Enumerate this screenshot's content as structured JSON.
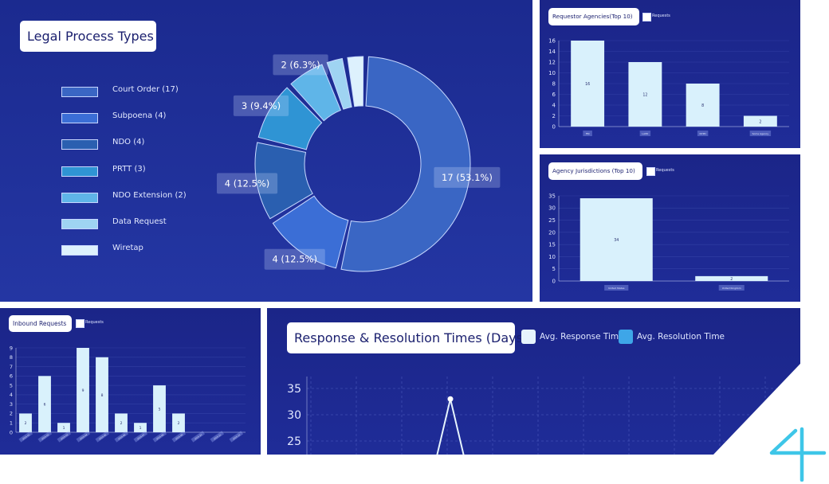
{
  "colors": {
    "accent": "#3ec6e8",
    "bar": "#d9f1fc"
  },
  "chart_data": [
    {
      "type": "pie",
      "title": "Legal Process Types",
      "categories": [
        "Court Order (17)",
        "Subpoena (4)",
        "NDO (4)",
        "PRTT (3)",
        "NDO Extension (2)",
        "Data Request",
        "Wiretap"
      ],
      "values": [
        17,
        4,
        4,
        3,
        2,
        1,
        1
      ],
      "slice_labels": [
        "17 (53.1%)",
        "4 (12.5%)",
        "4 (12.5%)",
        "3 (9.4%)",
        "2 (6.3%)",
        "",
        ""
      ],
      "colors": [
        "#3a66c4",
        "#3b6ed6",
        "#2a5fb0",
        "#2f94d4",
        "#5fb5e8",
        "#9fd4f2",
        "#ddf1fd"
      ]
    },
    {
      "type": "bar",
      "title": "Requestor Agencies(Top 10)",
      "legend": "Requests",
      "categories": [
        "FBI",
        "LAPD",
        "NYPD",
        "Some Agency"
      ],
      "values": [
        16,
        12,
        8,
        2
      ],
      "ylim": [
        0,
        16
      ],
      "yticks": [
        "0",
        "2",
        "4",
        "6",
        "8",
        "10",
        "12",
        "14",
        "16"
      ]
    },
    {
      "type": "bar",
      "title": "Agency Jurisdictions (Top 10)",
      "legend": "Requests",
      "categories": [
        "United States",
        "United Kingdom"
      ],
      "values": [
        34,
        2
      ],
      "ylim": [
        0,
        35
      ],
      "yticks": [
        "0",
        "5",
        "10",
        "15",
        "20",
        "25",
        "30",
        "35"
      ]
    },
    {
      "type": "bar",
      "title": "Inbound Requests",
      "legend": "Requests",
      "categories": [
        "2024-01",
        "2024-02",
        "2024-03",
        "2024-04",
        "2024-05",
        "2024-06",
        "2024-07",
        "2024-08",
        "2024-09",
        "2024-10",
        "2024-11",
        "2024-12"
      ],
      "values": [
        2,
        6,
        1,
        9,
        8,
        2,
        1,
        5,
        2,
        0,
        0,
        0
      ],
      "value_labels": [
        "2",
        "6",
        "1",
        "9",
        "8",
        "2",
        "1",
        "5",
        "2",
        "",
        "",
        ""
      ],
      "ylim": [
        0,
        9
      ],
      "yticks": [
        "0",
        "1",
        "2",
        "3",
        "4",
        "5",
        "6",
        "7",
        "8",
        "9"
      ]
    },
    {
      "type": "line",
      "title": "Response & Resolution Times (Days",
      "series": [
        {
          "name": "Avg. Response Time",
          "color": "#e6f4fd"
        },
        {
          "name": "Avg. Resolution Time",
          "color": "#3ea6e8"
        }
      ],
      "yticks": [
        "25",
        "30",
        "35"
      ],
      "peak_value": 33
    }
  ]
}
